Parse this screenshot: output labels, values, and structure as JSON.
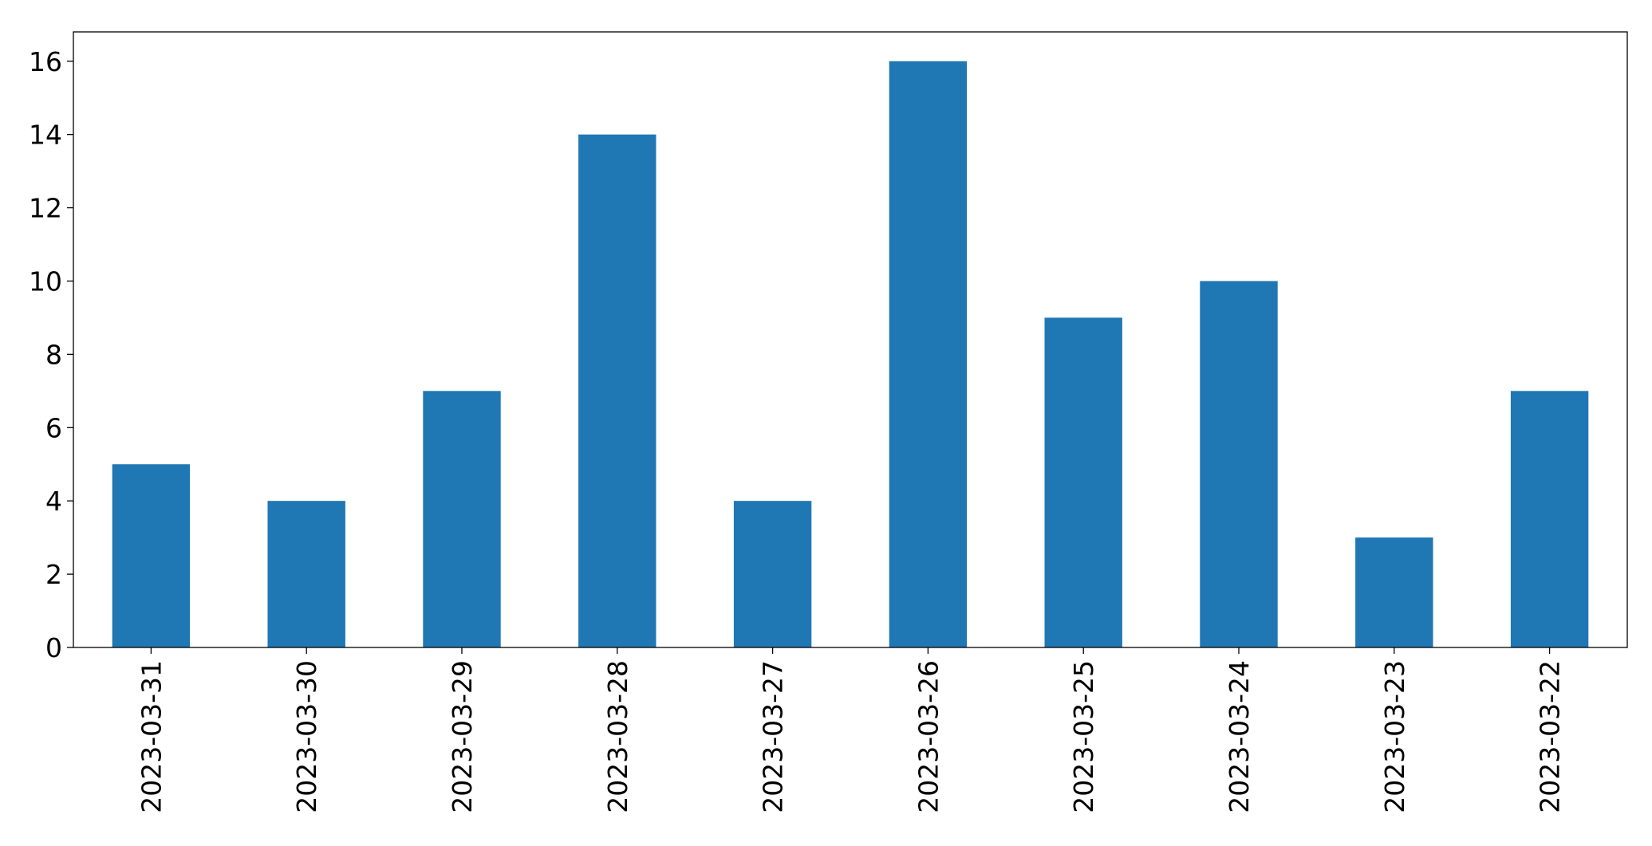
{
  "chart_data": {
    "type": "bar",
    "categories": [
      "2023-03-31",
      "2023-03-30",
      "2023-03-29",
      "2023-03-28",
      "2023-03-27",
      "2023-03-26",
      "2023-03-25",
      "2023-03-24",
      "2023-03-23",
      "2023-03-22"
    ],
    "values": [
      5,
      4,
      7,
      14,
      4,
      16,
      9,
      10,
      3,
      7
    ],
    "color": "#1f77b4",
    "ylim": [
      0,
      16.8
    ],
    "yticks": [
      0,
      2,
      4,
      6,
      8,
      10,
      12,
      14,
      16
    ],
    "grid": false
  }
}
